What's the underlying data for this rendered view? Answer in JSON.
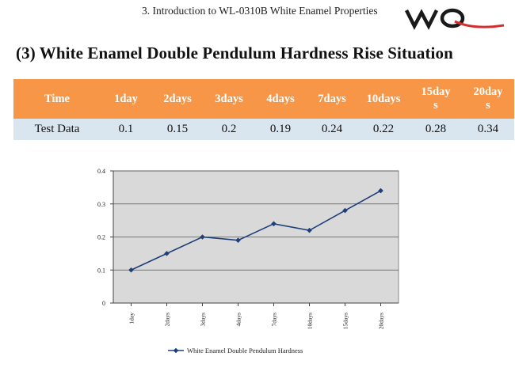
{
  "header": {
    "text": "3. Introduction to WL-0310B White Enamel Properties",
    "logo_text": "WQ",
    "logo_color": "#1a1a1a",
    "logo_swoosh_color": "#d32f2f"
  },
  "title": "(3) White Enamel Double Pendulum Hardness Rise Situation",
  "table": {
    "header_color": "#f79646",
    "row_color": "#d9e5ef",
    "headers": [
      {
        "lines": [
          "Time"
        ]
      },
      {
        "lines": [
          "1day"
        ]
      },
      {
        "lines": [
          "2days"
        ]
      },
      {
        "lines": [
          "3days"
        ]
      },
      {
        "lines": [
          "4days"
        ]
      },
      {
        "lines": [
          "7days"
        ]
      },
      {
        "lines": [
          "10days"
        ]
      },
      {
        "lines": [
          "15day",
          "s"
        ]
      },
      {
        "lines": [
          "20day",
          "s"
        ]
      }
    ],
    "row": [
      "Test Data",
      "0.1",
      "0.15",
      "0.2",
      "0.19",
      "0.24",
      "0.22",
      "0.28",
      "0.34"
    ]
  },
  "chart_data": {
    "type": "line",
    "categories": [
      "1day",
      "2days",
      "3days",
      "4days",
      "7days",
      "10days",
      "15days",
      "20days"
    ],
    "series": [
      {
        "name": "White Enamel Double Pendulum Hardness",
        "values": [
          0.1,
          0.15,
          0.2,
          0.19,
          0.24,
          0.22,
          0.28,
          0.34
        ],
        "color": "#1f3f7a",
        "marker": "diamond"
      }
    ],
    "ylim": [
      0,
      0.4
    ],
    "yticks": [
      "0",
      "0.1",
      "0.2",
      "0.3",
      "0.4"
    ],
    "grid": true,
    "plot_background": "#d9d9d9",
    "legend_position": "bottom",
    "title": "",
    "xlabel": "",
    "ylabel": ""
  }
}
